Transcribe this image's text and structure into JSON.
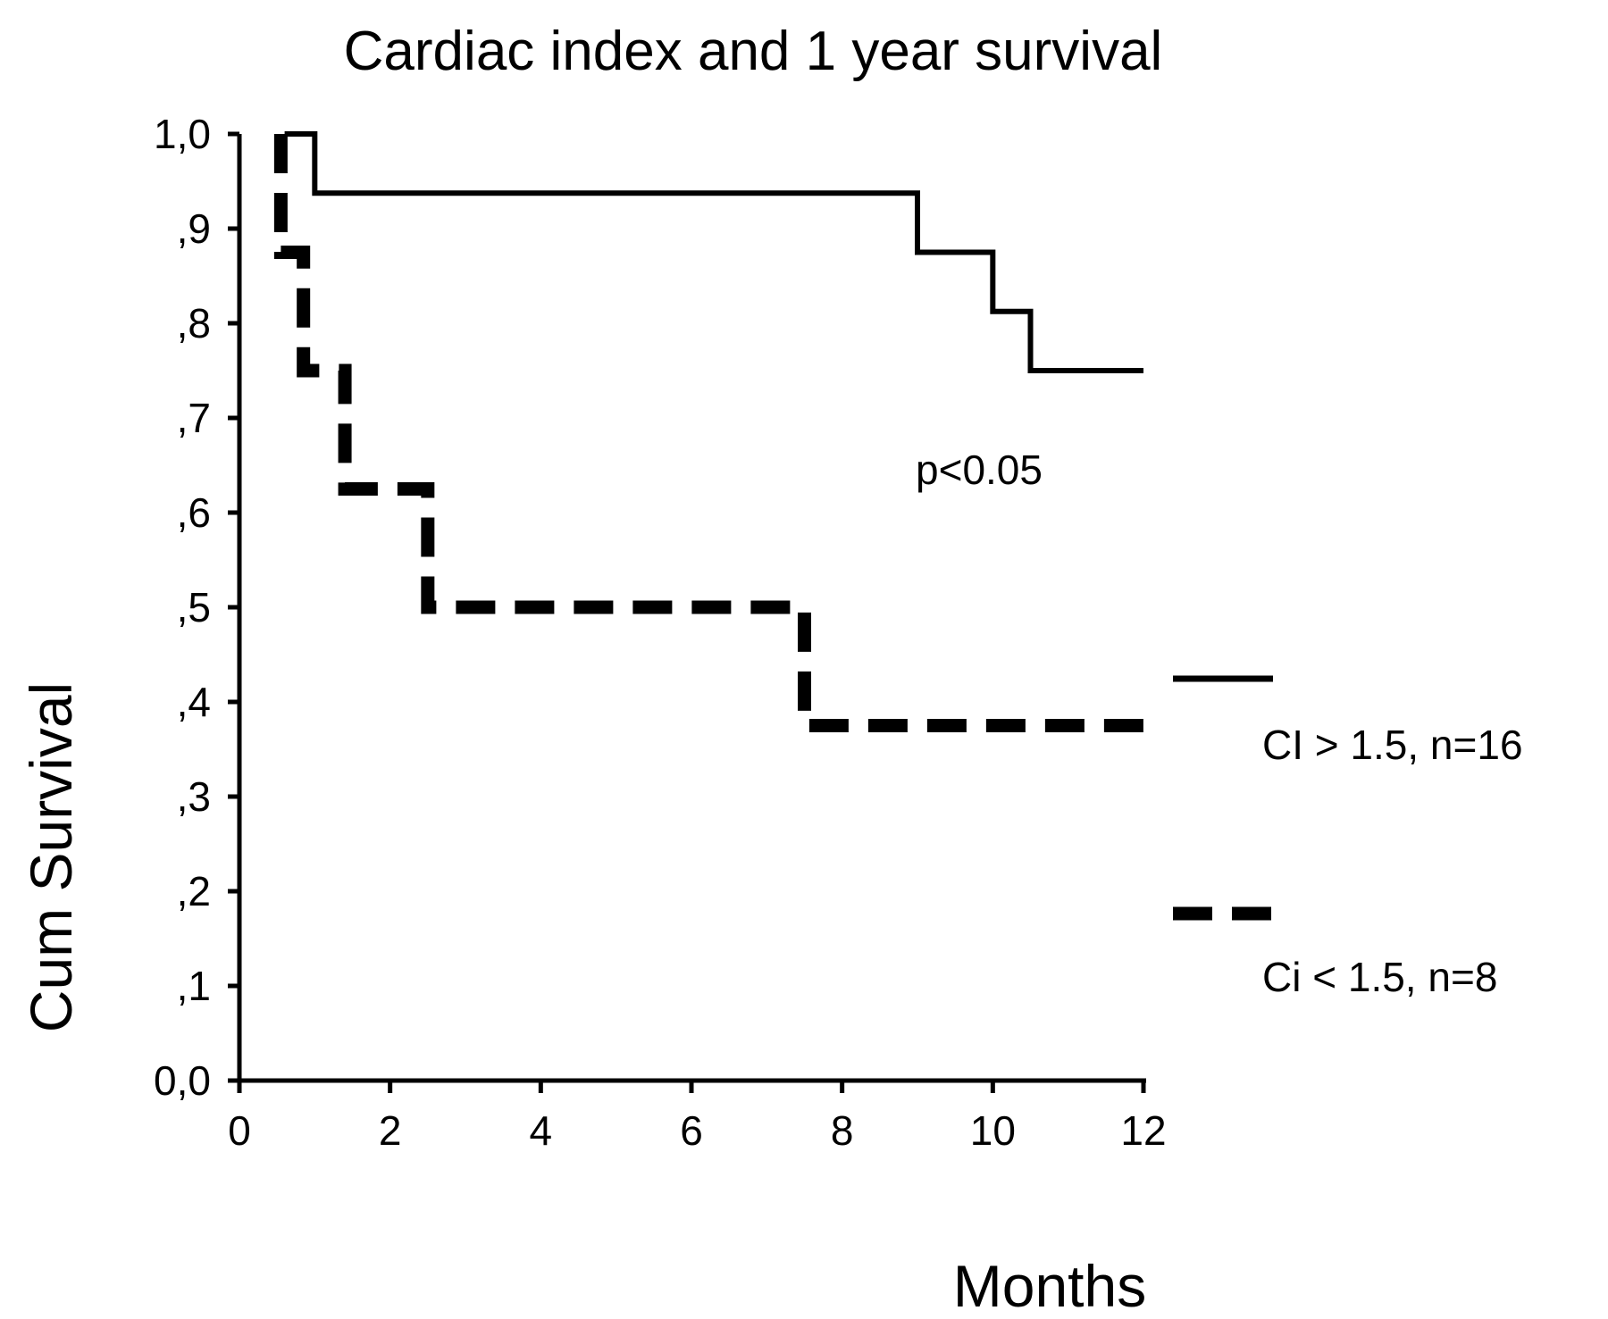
{
  "chart_data": {
    "type": "line",
    "step": true,
    "title": "Cardiac index and 1 year survival",
    "xlabel": "Months",
    "ylabel": "Cum Survival",
    "xlim": [
      0,
      12
    ],
    "ylim": [
      0,
      1
    ],
    "x_ticks": [
      0,
      2,
      4,
      6,
      8,
      10,
      12
    ],
    "x_tick_labels": [
      "0",
      "2",
      "4",
      "6",
      "8",
      "10",
      "12"
    ],
    "y_ticks": [
      0,
      0.1,
      0.2,
      0.3,
      0.4,
      0.5,
      0.6,
      0.7,
      0.8,
      0.9,
      1.0
    ],
    "y_tick_labels": [
      "0,0",
      ",1",
      ",2",
      ",3",
      ",4",
      ",5",
      ",6",
      ",7",
      ",8",
      ",9",
      "1,0"
    ],
    "grid": false,
    "legend_position": "right",
    "annotation": "p<0.05",
    "series": [
      {
        "name": "CI > 1.5, n=16",
        "style": "solid",
        "color": "#000000",
        "points": [
          [
            0.6,
            1.0
          ],
          [
            1.0,
            1.0
          ],
          [
            1.0,
            0.9375
          ],
          [
            9.0,
            0.9375
          ],
          [
            9.0,
            0.875
          ],
          [
            10.0,
            0.875
          ],
          [
            10.0,
            0.8125
          ],
          [
            10.5,
            0.8125
          ],
          [
            10.5,
            0.75
          ],
          [
            12.0,
            0.75
          ]
        ]
      },
      {
        "name": "Ci < 1.5, n=8",
        "style": "dashed",
        "color": "#000000",
        "points": [
          [
            0.55,
            1.0
          ],
          [
            0.55,
            0.875
          ],
          [
            0.85,
            0.875
          ],
          [
            0.85,
            0.75
          ],
          [
            1.4,
            0.75
          ],
          [
            1.4,
            0.625
          ],
          [
            2.5,
            0.625
          ],
          [
            2.5,
            0.5
          ],
          [
            7.5,
            0.5
          ],
          [
            7.5,
            0.375
          ],
          [
            12.0,
            0.375
          ]
        ]
      }
    ]
  }
}
